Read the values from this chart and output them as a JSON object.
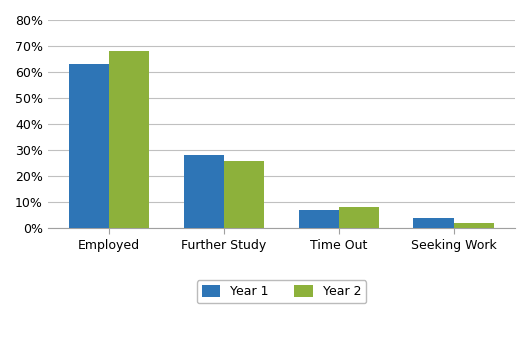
{
  "categories": [
    "Employed",
    "Further Study",
    "Time Out",
    "Seeking Work"
  ],
  "year1_values": [
    0.63,
    0.28,
    0.07,
    0.04
  ],
  "year2_values": [
    0.68,
    0.26,
    0.08,
    0.02
  ],
  "year1_color": "#2E75B6",
  "year2_color": "#8DB13B",
  "ylim": [
    0,
    0.8
  ],
  "yticks": [
    0,
    0.1,
    0.2,
    0.3,
    0.4,
    0.5,
    0.6,
    0.7,
    0.8
  ],
  "legend_labels": [
    "Year 1",
    "Year 2"
  ],
  "bar_width": 0.35,
  "background_color": "#FFFFFF",
  "grid_color": "#C0C0C0"
}
